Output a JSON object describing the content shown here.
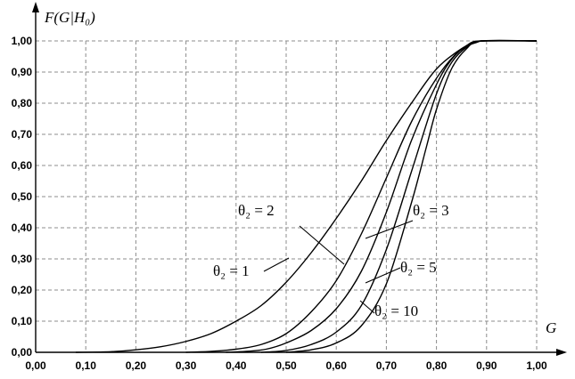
{
  "chart_data": {
    "type": "line",
    "title": "",
    "ylabel": "F(G|H₀)",
    "xlabel": "G",
    "xlim": [
      0,
      1.0
    ],
    "ylim": [
      0,
      1.0
    ],
    "x_ticks": [
      "0,00",
      "0,10",
      "0,20",
      "0,30",
      "0,40",
      "0,50",
      "0,60",
      "0,70",
      "0,80",
      "0,90",
      "1,00"
    ],
    "y_ticks": [
      "0,00",
      "0,10",
      "0,20",
      "0,30",
      "0,40",
      "0,50",
      "0,60",
      "0,70",
      "0,80",
      "0,90",
      "1,00"
    ],
    "grid": true,
    "series": [
      {
        "name": "θ₂ = 1",
        "label": "θ₂ = 1",
        "points": [
          [
            0.08,
            0.0
          ],
          [
            0.15,
            0.002
          ],
          [
            0.2,
            0.008
          ],
          [
            0.25,
            0.018
          ],
          [
            0.3,
            0.035
          ],
          [
            0.35,
            0.06
          ],
          [
            0.4,
            0.1
          ],
          [
            0.45,
            0.15
          ],
          [
            0.5,
            0.225
          ],
          [
            0.55,
            0.32
          ],
          [
            0.6,
            0.43
          ],
          [
            0.65,
            0.55
          ],
          [
            0.7,
            0.68
          ],
          [
            0.75,
            0.8
          ],
          [
            0.8,
            0.91
          ],
          [
            0.85,
            0.975
          ],
          [
            0.88,
            0.995
          ],
          [
            0.9,
            1.0
          ],
          [
            1.0,
            1.0
          ]
        ]
      },
      {
        "name": "θ₂ = 2",
        "label": "θ₂ = 2",
        "points": [
          [
            0.3,
            0.0
          ],
          [
            0.35,
            0.003
          ],
          [
            0.4,
            0.01
          ],
          [
            0.45,
            0.025
          ],
          [
            0.5,
            0.06
          ],
          [
            0.55,
            0.13
          ],
          [
            0.6,
            0.23
          ],
          [
            0.65,
            0.38
          ],
          [
            0.7,
            0.56
          ],
          [
            0.75,
            0.74
          ],
          [
            0.8,
            0.88
          ],
          [
            0.84,
            0.96
          ],
          [
            0.87,
            0.99
          ],
          [
            0.89,
            1.0
          ],
          [
            1.0,
            1.0
          ]
        ]
      },
      {
        "name": "θ₂ = 3",
        "label": "θ₂ = 3",
        "points": [
          [
            0.38,
            0.0
          ],
          [
            0.42,
            0.003
          ],
          [
            0.46,
            0.01
          ],
          [
            0.5,
            0.03
          ],
          [
            0.55,
            0.07
          ],
          [
            0.6,
            0.14
          ],
          [
            0.65,
            0.26
          ],
          [
            0.7,
            0.45
          ],
          [
            0.75,
            0.68
          ],
          [
            0.8,
            0.86
          ],
          [
            0.83,
            0.94
          ],
          [
            0.86,
            0.985
          ],
          [
            0.89,
            1.0
          ],
          [
            1.0,
            1.0
          ]
        ]
      },
      {
        "name": "θ₂ = 5",
        "label": "θ₂ = 5",
        "points": [
          [
            0.45,
            0.0
          ],
          [
            0.5,
            0.006
          ],
          [
            0.55,
            0.025
          ],
          [
            0.6,
            0.065
          ],
          [
            0.65,
            0.15
          ],
          [
            0.7,
            0.33
          ],
          [
            0.75,
            0.58
          ],
          [
            0.8,
            0.83
          ],
          [
            0.83,
            0.93
          ],
          [
            0.86,
            0.98
          ],
          [
            0.89,
            1.0
          ],
          [
            1.0,
            1.0
          ]
        ]
      },
      {
        "name": "θ₂ = 10",
        "label": "θ₂ = 10",
        "points": [
          [
            0.5,
            0.0
          ],
          [
            0.55,
            0.008
          ],
          [
            0.6,
            0.03
          ],
          [
            0.65,
            0.085
          ],
          [
            0.7,
            0.22
          ],
          [
            0.75,
            0.48
          ],
          [
            0.78,
            0.66
          ],
          [
            0.8,
            0.78
          ],
          [
            0.83,
            0.91
          ],
          [
            0.86,
            0.975
          ],
          [
            0.89,
            1.0
          ],
          [
            1.0,
            1.0
          ]
        ]
      }
    ]
  }
}
